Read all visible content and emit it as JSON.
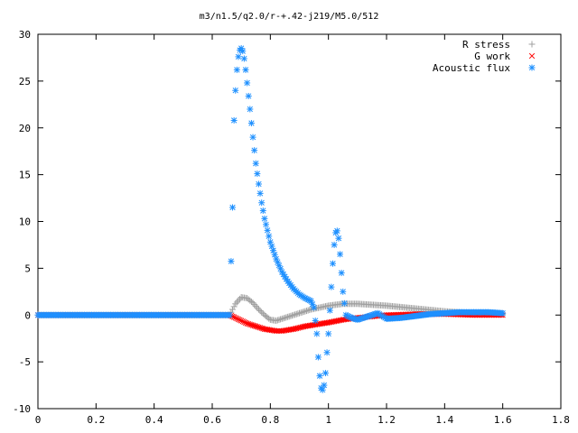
{
  "chart_data": {
    "type": "scatter",
    "title": "m3/n1.5/q2.0/r-+.42-j219/M5.0/512",
    "xlabel": "",
    "ylabel": "",
    "xlim": [
      0,
      1.8
    ],
    "ylim": [
      -10,
      30
    ],
    "xticks": [
      "0",
      "0.2",
      "0.4",
      "0.6",
      "0.8",
      "1",
      "1.2",
      "1.4",
      "1.6",
      "1.8"
    ],
    "yticks": [
      "-10",
      "-5",
      "0",
      "5",
      "10",
      "15",
      "20",
      "25",
      "30"
    ],
    "grid": false,
    "legend_position": "top-right",
    "series": [
      {
        "name": "R stress",
        "marker": "plus",
        "color": "#a0a0a0",
        "x": [
          0,
          0.1,
          0.2,
          0.3,
          0.4,
          0.5,
          0.6,
          0.66,
          0.68,
          0.7,
          0.72,
          0.74,
          0.76,
          0.78,
          0.8,
          0.82,
          0.84,
          0.86,
          0.9,
          0.94,
          1.0,
          1.05,
          1.1,
          1.2,
          1.3,
          1.4,
          1.5,
          1.6
        ],
        "y": [
          0,
          0,
          0,
          0,
          0,
          0,
          0,
          0,
          1.2,
          1.9,
          1.8,
          1.3,
          0.6,
          0.0,
          -0.5,
          -0.6,
          -0.4,
          -0.2,
          0.2,
          0.6,
          1.0,
          1.2,
          1.2,
          1.0,
          0.7,
          0.4,
          0.2,
          0.1
        ]
      },
      {
        "name": "G work",
        "marker": "cross",
        "color": "#ff0000",
        "x": [
          0,
          0.1,
          0.2,
          0.3,
          0.4,
          0.5,
          0.6,
          0.66,
          0.68,
          0.7,
          0.72,
          0.74,
          0.76,
          0.78,
          0.8,
          0.82,
          0.84,
          0.88,
          0.92,
          0.96,
          1.0,
          1.05,
          1.1,
          1.2,
          1.3,
          1.4,
          1.5,
          1.6
        ],
        "y": [
          0,
          0,
          0,
          0,
          0,
          0,
          0,
          0,
          -0.3,
          -0.6,
          -0.9,
          -1.1,
          -1.3,
          -1.5,
          -1.6,
          -1.7,
          -1.7,
          -1.5,
          -1.2,
          -1.0,
          -0.8,
          -0.5,
          -0.3,
          0.0,
          0.1,
          0.1,
          0.0,
          0.0
        ]
      },
      {
        "name": "Acoustic flux",
        "marker": "star",
        "color": "#1e90ff",
        "x": [
          0,
          0.1,
          0.2,
          0.3,
          0.4,
          0.5,
          0.6,
          0.66,
          0.67,
          0.675,
          0.68,
          0.685,
          0.69,
          0.695,
          0.7,
          0.705,
          0.71,
          0.715,
          0.72,
          0.73,
          0.74,
          0.75,
          0.76,
          0.77,
          0.78,
          0.8,
          0.82,
          0.84,
          0.86,
          0.88,
          0.9,
          0.92,
          0.94,
          0.95,
          0.96,
          0.965,
          0.97,
          0.975,
          0.98,
          0.985,
          0.99,
          0.995,
          1.0,
          1.005,
          1.01,
          1.015,
          1.02,
          1.025,
          1.03,
          1.035,
          1.04,
          1.045,
          1.05,
          1.06,
          1.08,
          1.1,
          1.12,
          1.15,
          1.17,
          1.2,
          1.25,
          1.3,
          1.35,
          1.4,
          1.45,
          1.5,
          1.55,
          1.6
        ],
        "y": [
          0,
          0,
          0,
          0,
          0,
          0,
          0,
          0,
          11.5,
          20.8,
          24.0,
          26.2,
          27.6,
          28.3,
          28.5,
          28.2,
          27.4,
          26.2,
          24.8,
          22.0,
          19.0,
          16.2,
          14.0,
          12.0,
          10.3,
          7.8,
          6.0,
          4.6,
          3.6,
          2.8,
          2.2,
          1.8,
          1.5,
          0.8,
          -2.0,
          -4.5,
          -6.5,
          -7.8,
          -8.0,
          -7.5,
          -6.2,
          -4.0,
          -2.0,
          0.5,
          3.0,
          5.5,
          7.5,
          8.8,
          9.0,
          8.2,
          6.5,
          4.5,
          2.5,
          0.0,
          -0.3,
          -0.5,
          -0.3,
          0.0,
          0.2,
          -0.4,
          -0.3,
          -0.1,
          0.1,
          0.2,
          0.3,
          0.3,
          0.3,
          0.2
        ]
      }
    ]
  }
}
